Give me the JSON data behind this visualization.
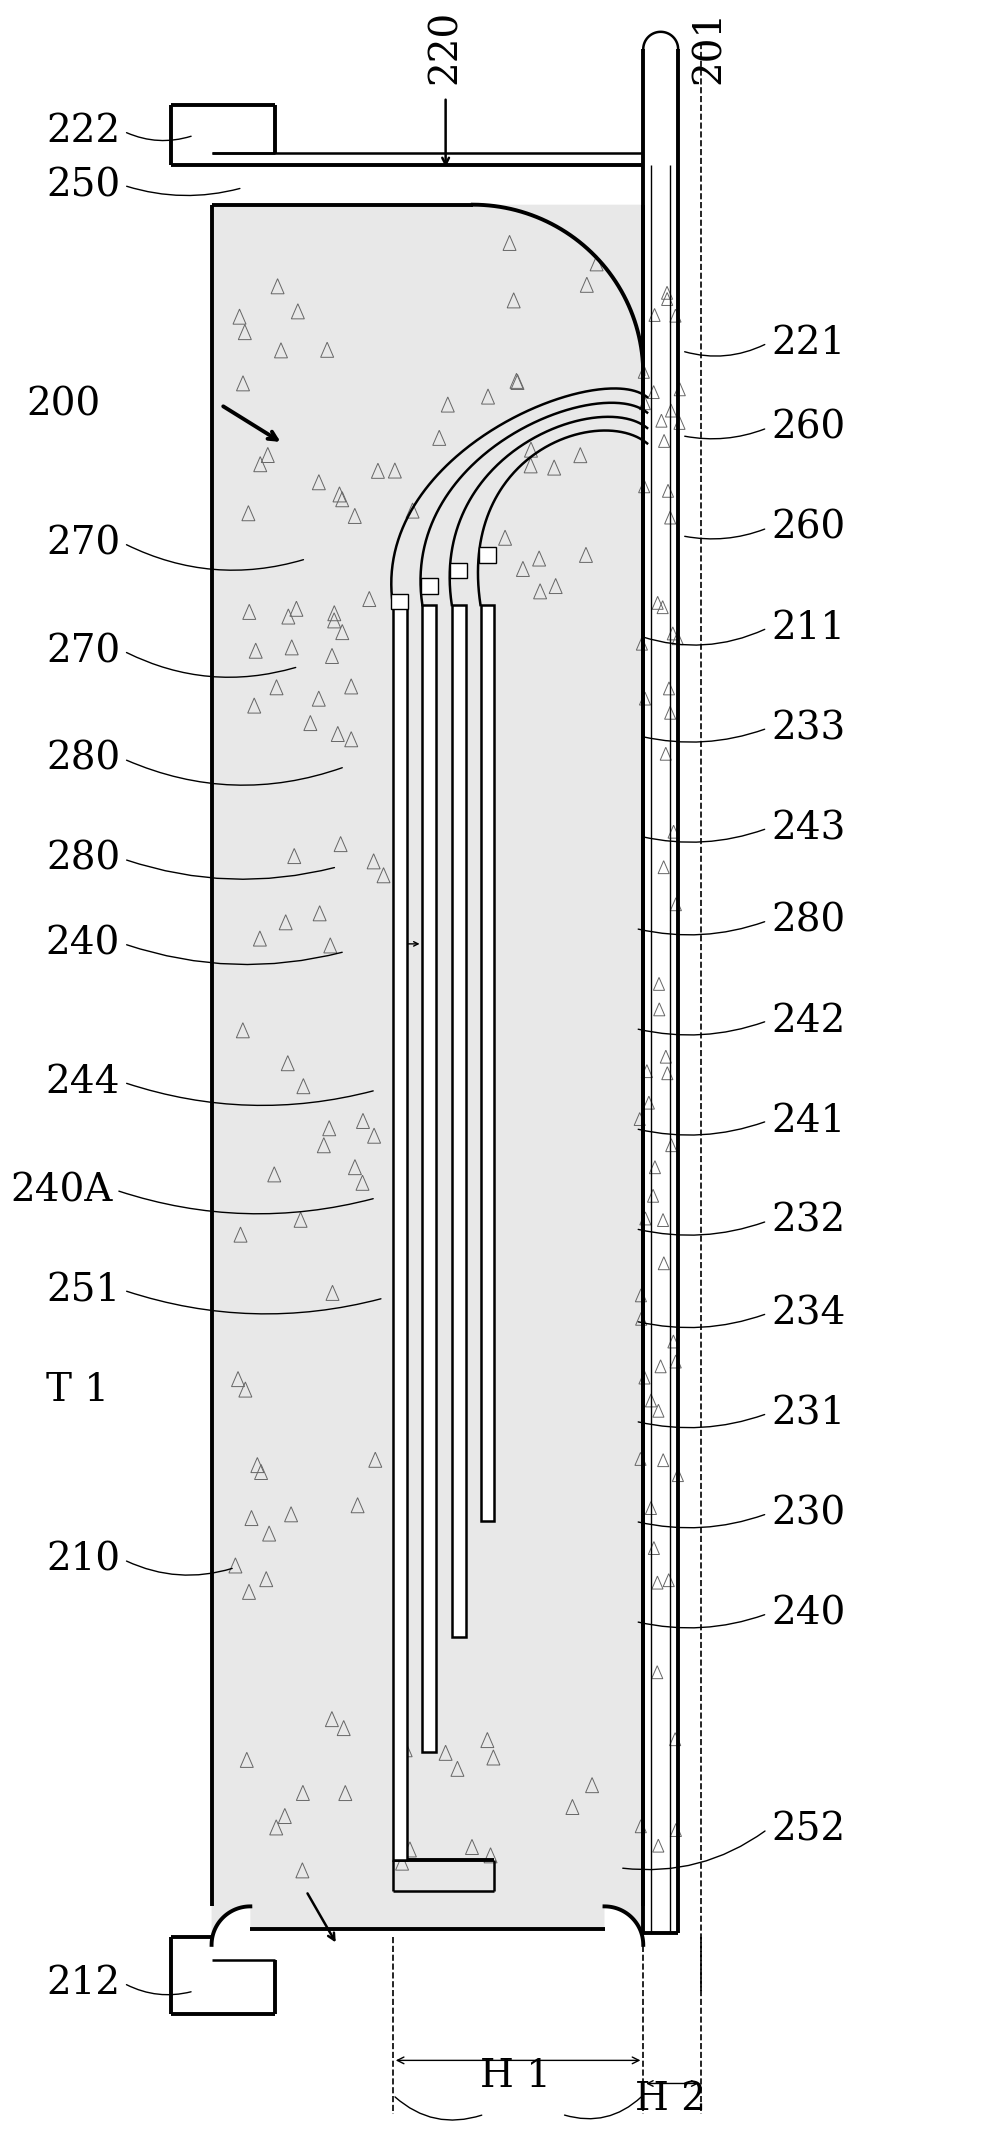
{
  "fig_width": 12.34,
  "fig_height": 27.56,
  "bg_color": "#ffffff",
  "lw_thick": 2.8,
  "lw_med": 1.8,
  "lw_thin": 1.0,
  "lw_dashed": 1.2,
  "stipple_color": "#aaaaaa",
  "fill_color": "#e0e0e0"
}
